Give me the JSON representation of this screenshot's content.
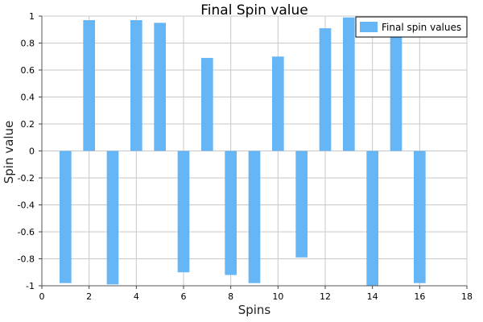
{
  "chart_data": {
    "type": "bar",
    "title": "Final Spin value",
    "xlabel": "Spins",
    "ylabel": "Spin value",
    "xlim": [
      0,
      18
    ],
    "ylim": [
      -1,
      1
    ],
    "x_ticks": [
      "0",
      "2",
      "4",
      "6",
      "8",
      "10",
      "12",
      "14",
      "16",
      "18"
    ],
    "y_ticks": [
      "1",
      "0.8",
      "0.6",
      "0.4",
      "0.2",
      "0",
      "-0.2",
      "-0.4",
      "-0.6",
      "-0.8",
      "-1"
    ],
    "grid": true,
    "legend_position": "top-right",
    "series": [
      {
        "name": "Final spin values",
        "color": "#66b5f5",
        "x": [
          1,
          2,
          3,
          4,
          5,
          6,
          7,
          8,
          9,
          10,
          11,
          12,
          13,
          14,
          15,
          16
        ],
        "values": [
          -0.98,
          0.97,
          -0.99,
          0.97,
          0.95,
          -0.9,
          0.69,
          -0.92,
          -0.98,
          0.7,
          -0.79,
          0.91,
          0.99,
          -1.0,
          0.93,
          -0.98
        ]
      }
    ]
  }
}
